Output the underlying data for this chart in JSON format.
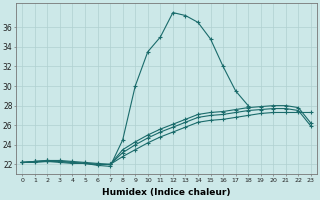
{
  "xlabel": "Humidex (Indice chaleur)",
  "bg_color": "#cce8e8",
  "grid_color": "#b0d0d0",
  "line_color": "#1a6b6b",
  "xlim": [
    -0.5,
    23.5
  ],
  "ylim": [
    21.0,
    38.5
  ],
  "yticks": [
    22,
    24,
    26,
    28,
    30,
    32,
    34,
    36
  ],
  "xticks": [
    0,
    1,
    2,
    3,
    4,
    5,
    6,
    7,
    8,
    9,
    10,
    11,
    12,
    13,
    14,
    15,
    16,
    17,
    18,
    19,
    20,
    21,
    22,
    23
  ],
  "series": [
    [
      22.2,
      22.2,
      22.3,
      22.2,
      22.1,
      22.1,
      21.9,
      21.8,
      24.5,
      30.0,
      33.5,
      35.0,
      37.5,
      37.2,
      36.5,
      34.8,
      32.0,
      29.5,
      28.0,
      null,
      null,
      null,
      null,
      null
    ],
    [
      22.2,
      22.3,
      22.3,
      22.3,
      22.2,
      22.1,
      22.0,
      22.0,
      22.8,
      23.5,
      24.2,
      24.8,
      25.3,
      25.8,
      26.3,
      26.5,
      26.6,
      26.8,
      27.0,
      27.2,
      27.3,
      27.3,
      27.3,
      27.3
    ],
    [
      22.2,
      22.3,
      22.4,
      22.3,
      22.2,
      22.1,
      22.0,
      22.0,
      23.2,
      24.0,
      24.7,
      25.3,
      25.8,
      26.3,
      26.8,
      27.0,
      27.1,
      27.3,
      27.5,
      27.6,
      27.7,
      27.7,
      27.5,
      25.9
    ],
    [
      22.2,
      22.3,
      22.4,
      22.4,
      22.3,
      22.2,
      22.1,
      22.0,
      23.5,
      24.3,
      25.0,
      25.6,
      26.1,
      26.6,
      27.1,
      27.3,
      27.4,
      27.6,
      27.8,
      27.9,
      28.0,
      28.0,
      27.8,
      26.2
    ]
  ],
  "marker": "+",
  "marker_size": 3.5,
  "line_width": 0.8
}
